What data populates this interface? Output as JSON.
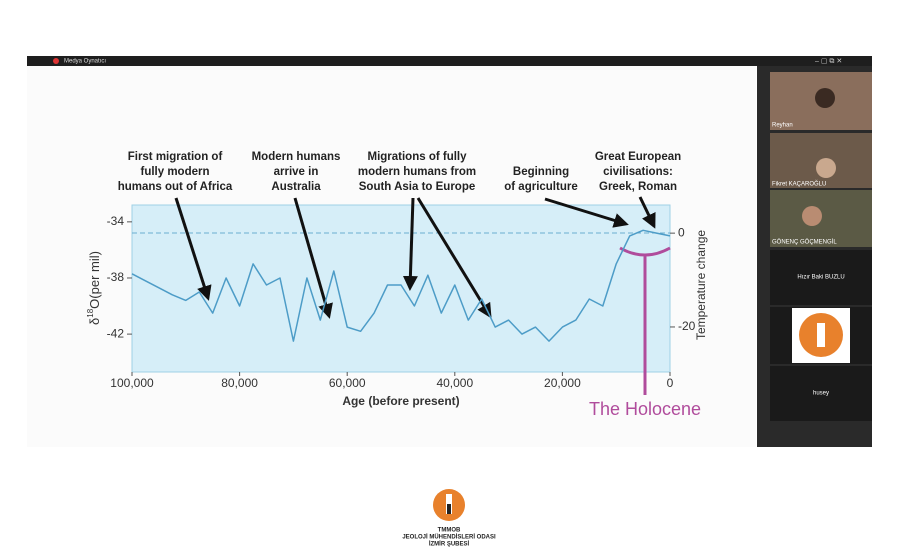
{
  "window": {
    "title": "Medya Oynatıcı"
  },
  "slide": {
    "chart": {
      "type": "line",
      "y_label": {
        "prefix": "δ",
        "sup": "18",
        "suffix": "O(per mil)"
      },
      "y2_label": "Temperature change",
      "x_label": "Age (before present)",
      "xlim": [
        100000,
        0
      ],
      "xticks": [
        {
          "value": 100000,
          "label": "100,000"
        },
        {
          "value": 80000,
          "label": "80,000"
        },
        {
          "value": 60000,
          "label": "60,000"
        },
        {
          "value": 40000,
          "label": "40,000"
        },
        {
          "value": 20000,
          "label": "20,000"
        },
        0
      ],
      "ylim": [
        -44.7,
        -32.8
      ],
      "yticks": [
        -34,
        -38,
        -42
      ],
      "y2lim": [
        -29.6,
        6
      ],
      "y2ticks": [
        0,
        -20
      ],
      "x": [
        100000,
        97500,
        95000,
        92500,
        90000,
        87500,
        85000,
        82500,
        80000,
        77500,
        75000,
        72500,
        70000,
        67500,
        65000,
        62500,
        60000,
        57500,
        55000,
        52500,
        50000,
        47500,
        45000,
        42500,
        40000,
        37500,
        35000,
        32500,
        30000,
        27500,
        25000,
        22500,
        20000,
        17500,
        15000,
        12500,
        10000,
        7500,
        5000,
        2500,
        0
      ],
      "series": [
        {
          "color": "#4d9cc7",
          "values": [
            -37.7,
            -38.2,
            -38.7,
            -39.2,
            -39.6,
            -39.0,
            -40.5,
            -38.0,
            -40.0,
            -37.0,
            -38.5,
            -38.0,
            -42.5,
            -38.0,
            -41.0,
            -37.5,
            -41.5,
            -41.8,
            -40.5,
            -38.5,
            -38.5,
            -40.0,
            -37.8,
            -40.5,
            -38.5,
            -41.0,
            -39.5,
            -41.5,
            -41.0,
            -42.0,
            -41.5,
            -42.5,
            -41.5,
            -41.0,
            -39.5,
            -40.0,
            -37.0,
            -35.0,
            -34.6,
            -34.8,
            -35.0
          ]
        }
      ]
    },
    "annotations": [
      {
        "lines": [
          "First migration of",
          "fully modern",
          "humans out of Africa"
        ]
      },
      {
        "lines": [
          "Modern humans",
          "arrive in",
          "Australia"
        ]
      },
      {
        "lines": [
          "Migrations of fully",
          "modern humans from",
          "South Asia to Europe"
        ]
      },
      {
        "lines": [
          "Beginning",
          "of agriculture"
        ]
      },
      {
        "lines": [
          "Great European",
          "civilisations:",
          "Greek, Roman"
        ]
      }
    ],
    "holocene_label": "The Holocene"
  },
  "participants": [
    "Reyhan",
    "Fikret KAÇAROĞLU",
    "GÖNENÇ GÖÇMENGİL",
    "Hızır Baki BUZLU",
    "husey"
  ],
  "logo": {
    "lines": [
      "TMMOB",
      "JEOLOJİ MÜHENDİSLERİ ODASI",
      "İZMİR ŞUBESİ"
    ]
  }
}
